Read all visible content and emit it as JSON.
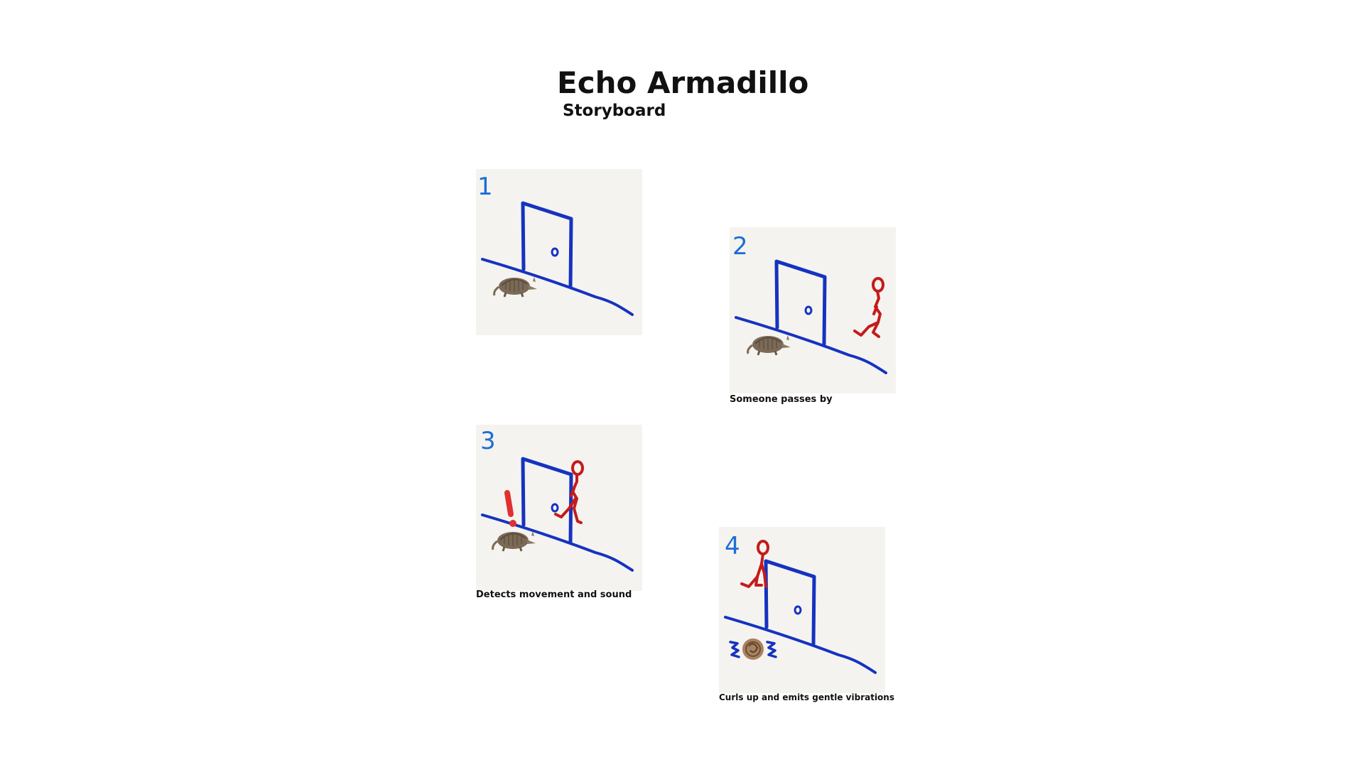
{
  "title": "Echo Armadillo",
  "subtitle": "Storyboard",
  "panels": [
    {
      "number": "1",
      "caption": "",
      "icon": "armadillo"
    },
    {
      "number": "2",
      "caption": "Someone passes by",
      "icon": "armadillo"
    },
    {
      "number": "3",
      "caption": "Detects movement and sound",
      "icon": "armadillo"
    },
    {
      "number": "4",
      "caption": "Curls up and emits gentle vibrations",
      "icon": "curled-armadillo"
    }
  ],
  "colors": {
    "ink_blue": "#1533c0",
    "number_blue": "#1a6fd6",
    "figure_red": "#c41b1b",
    "alert_red": "#e03030",
    "panel_bg": "#f5f3ef"
  }
}
